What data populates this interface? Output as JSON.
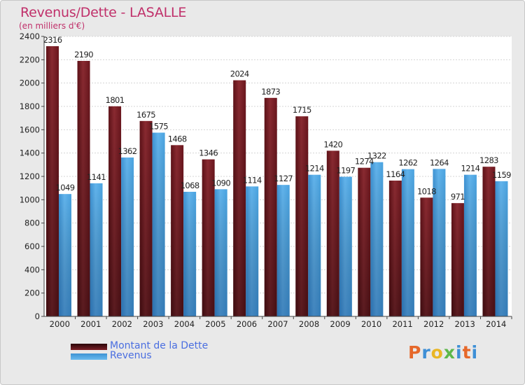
{
  "title": "Revenus/Dette - LASALLE",
  "subtitle": "(en milliers d'€)",
  "colors": {
    "debt": "#7a1f26",
    "debt_light": "#9b3b42",
    "revenue": "#4aa3e0",
    "revenue_light": "#73bdf0",
    "title": "#c0306a",
    "legend_text": "#4a6ee0"
  },
  "legend": [
    {
      "label": "Montant de la Dette",
      "series": "debt"
    },
    {
      "label": "Revenus",
      "series": "revenue"
    }
  ],
  "logo": {
    "letters": [
      "P",
      "r",
      "o",
      "x",
      "i",
      "t",
      "i"
    ],
    "colors": [
      "#e6682a",
      "#3e8fd6",
      "#e9b625",
      "#5db84a",
      "#3e8fd6",
      "#e6682a",
      "#3e8fd6"
    ]
  },
  "chart_data": {
    "type": "bar",
    "categories": [
      "2000",
      "2001",
      "2002",
      "2003",
      "2004",
      "2005",
      "2006",
      "2007",
      "2008",
      "2009",
      "2010",
      "2011",
      "2012",
      "2013",
      "2014"
    ],
    "series": [
      {
        "name": "Montant de la Dette",
        "values": [
          2316,
          2190,
          1801,
          1675,
          1468,
          1346,
          2024,
          1873,
          1715,
          1420,
          1274,
          1164,
          1018,
          971,
          1283
        ]
      },
      {
        "name": "Revenus",
        "values": [
          1049,
          1141,
          1362,
          1575,
          1068,
          1090,
          1114,
          1127,
          1214,
          1197,
          1322,
          1262,
          1264,
          1214,
          1159
        ]
      }
    ],
    "ylim": [
      0,
      2400
    ],
    "yticks": [
      0,
      200,
      400,
      600,
      800,
      1000,
      1200,
      1400,
      1600,
      1800,
      2000,
      2200,
      2400
    ],
    "grid": true,
    "legend_position": "bottom-left"
  }
}
